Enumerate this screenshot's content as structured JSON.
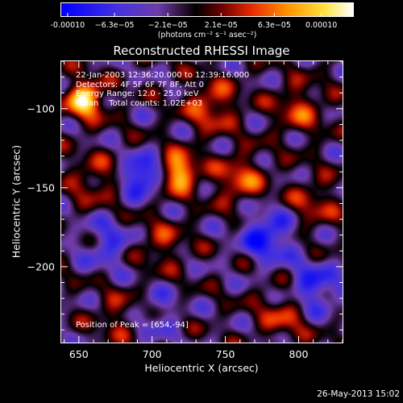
{
  "colorbar": {
    "ticks": [
      "-0.00010",
      "−6.3e−05",
      "−2.1e−05",
      "2.1e−05",
      "6.3e−05",
      "0.00010"
    ],
    "tick_values": [
      -0.0001,
      -6.3e-05,
      -2.1e-05,
      2.1e-05,
      6.3e-05,
      0.0001
    ],
    "range": [
      -0.000105,
      0.000125
    ],
    "units": "(photons cm⁻² s⁻¹ asec⁻²)"
  },
  "chart_data": {
    "type": "heatmap",
    "title": "Reconstructed RHESSI Image",
    "xlabel": "Heliocentric X (arcsec)",
    "ylabel": "Heliocentric Y (arcsec)",
    "xlim": [
      638,
      830
    ],
    "ylim": [
      -248,
      -70
    ],
    "x_ticks": [
      650,
      700,
      750,
      800
    ],
    "y_ticks": [
      -100,
      -150,
      -200
    ],
    "x_tick_labels": [
      "650",
      "700",
      "750",
      "800"
    ],
    "y_tick_labels": [
      "−100",
      "−150",
      "−200"
    ],
    "colormap": "blue-purple-black-red-yellow-white",
    "annotations": [
      "22-Jan-2003 12:36:20.000 to 12:39:16.000",
      "Detectors: 4F 5F 6F 7F 8F, Att 0",
      "Energy Range: 12.0 - 25.0 keV",
      "Clean    Total counts: 1.02E+03"
    ],
    "peak_label": "Position of Peak = [654,-94]",
    "sources": [
      {
        "x": 654,
        "y": -94,
        "value": 0.00012
      },
      {
        "x": 718,
        "y": -140,
        "value": 0.00011
      },
      {
        "x": 693,
        "y": -142,
        "value": -0.0001
      },
      {
        "x": 778,
        "y": -180,
        "value": -8e-05
      },
      {
        "x": 810,
        "y": -213,
        "value": -7e-05
      },
      {
        "x": 740,
        "y": -98,
        "value": 6e-05
      },
      {
        "x": 760,
        "y": -145,
        "value": 6e-05
      },
      {
        "x": 800,
        "y": -100,
        "value": 5e-05
      },
      {
        "x": 790,
        "y": -230,
        "value": 5e-05
      },
      {
        "x": 680,
        "y": -230,
        "value": 4e-05
      },
      {
        "x": 670,
        "y": -185,
        "value": -5e-05
      },
      {
        "x": 700,
        "y": -230,
        "value": -4e-05
      },
      {
        "x": 810,
        "y": -160,
        "value": 4e-05
      },
      {
        "x": 660,
        "y": -145,
        "value": 4e-05
      },
      {
        "x": 705,
        "y": -185,
        "value": 4e-05
      }
    ]
  },
  "footer": {
    "timestamp": "26-May-2013 15:02"
  }
}
